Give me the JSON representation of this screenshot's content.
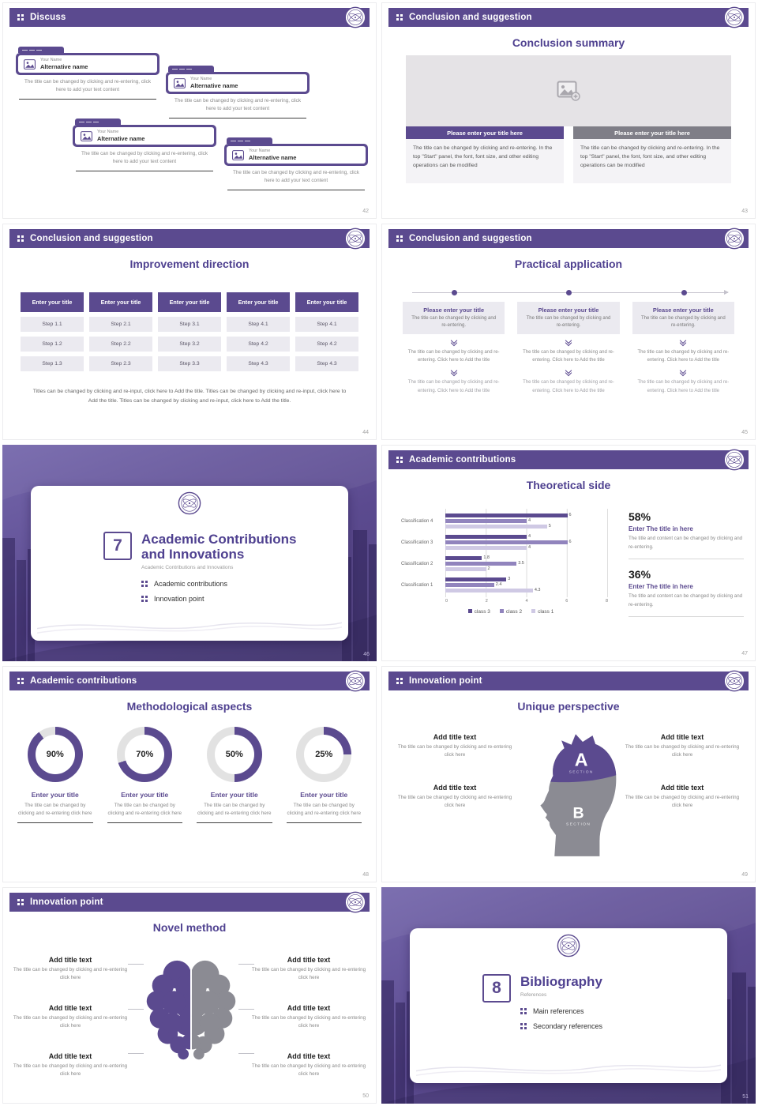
{
  "theme": {
    "primary": "#5b4a8f",
    "primary_dark": "#4f4190",
    "mid_purple": "#9184bd",
    "light_purple": "#cfc9e4",
    "bar_gray": "#7f7e87",
    "panel_gray": "#ebeaf0",
    "placeholder_gray": "#e5e3e6",
    "donut_track": "#e2e2e2",
    "head_gray": "#8b8b93"
  },
  "slides": {
    "s42": {
      "header": "Discuss",
      "page": "42",
      "cards": [
        {
          "name_label": "Your Name",
          "alt_name": "Alternative name",
          "body": "The title can be changed by clicking and re-entering, click here to add your text content"
        },
        {
          "name_label": "Your Name",
          "alt_name": "Alternative name",
          "body": "The title can be changed by clicking and re-entering, click here to add your text content"
        },
        {
          "name_label": "Your Name",
          "alt_name": "Alternative name",
          "body": "The title can be changed by clicking and re-entering, click here to add your text content"
        },
        {
          "name_label": "Your Name",
          "alt_name": "Alternative name",
          "body": "The title can be changed by clicking and re-entering, click here to add your text content"
        }
      ]
    },
    "s43": {
      "header": "Conclusion and suggestion",
      "page": "43",
      "heading": "Conclusion summary",
      "columns": [
        {
          "title": "Please enter your title here",
          "body": "The title can be changed by clicking and re-entering. In the top \"Start\" panel, the font, font size, and other editing operations can be modified"
        },
        {
          "title": "Please enter your title here",
          "body": "The title can be changed by clicking and re-entering. In the top \"Start\" panel, the font, font size, and other editing operations can be modified"
        }
      ]
    },
    "s44": {
      "header": "Conclusion and suggestion",
      "page": "44",
      "heading": "Improvement direction",
      "button_label": "Enter your title",
      "columns": [
        {
          "steps": [
            "Step 1.1",
            "Step 1.2",
            "Step 1.3"
          ]
        },
        {
          "steps": [
            "Step 2.1",
            "Step 2.2",
            "Step 2.3"
          ]
        },
        {
          "steps": [
            "Step 3.1",
            "Step 3.2",
            "Step 3.3"
          ]
        },
        {
          "steps": [
            "Step 4.1",
            "Step 4.2",
            "Step 4.3"
          ]
        },
        {
          "steps": [
            "Step 4.1",
            "Step 4.2",
            "Step 4.3"
          ]
        }
      ],
      "footer": "Titles can be changed by clicking and re-input, click here to Add the title. Titles can be changed by clicking and re-input, click here to Add the title. Titles can be changed by clicking and re-input, click here to Add the title."
    },
    "s45": {
      "header": "Conclusion and suggestion",
      "page": "45",
      "heading": "Practical application",
      "col_title": "Please enter your title",
      "col_sub": "The title can be changed by clicking and re-entering.",
      "col_body": "The title can be changed by clicking and re-entering. Click here to Add the title"
    },
    "s46": {
      "page": "46",
      "number": "7",
      "title_line1": "Academic Contributions",
      "title_line2": "and Innovations",
      "subtitle": "Academic Contributions and Innovations",
      "bullets": [
        "Academic contributions",
        "Innovation point"
      ]
    },
    "s47": {
      "header": "Academic contributions",
      "page": "47",
      "heading": "Theoretical side",
      "stats": [
        {
          "percent": "58%",
          "title": "Enter The title in here",
          "body": "The title and content can be changed by clicking and re-entering."
        },
        {
          "percent": "36%",
          "title": "Enter The title in here",
          "body": "The title and content can be changed by clicking and re-entering."
        }
      ]
    },
    "s48": {
      "header": "Academic contributions",
      "page": "48",
      "heading": "Methodological aspects",
      "donuts": [
        {
          "percent": 90,
          "label": "90%",
          "title": "Enter your title",
          "body": "The title can be changed by clicking and re-entering click here"
        },
        {
          "percent": 70,
          "label": "70%",
          "title": "Enter your title",
          "body": "The title can be changed by clicking and re-entering click here"
        },
        {
          "percent": 50,
          "label": "50%",
          "title": "Enter your title",
          "body": "The title can be changed by clicking and re-entering click here"
        },
        {
          "percent": 25,
          "label": "25%",
          "title": "Enter your title",
          "body": "The title can be changed by clicking and re-entering click here"
        }
      ]
    },
    "s49": {
      "header": "Innovation point",
      "page": "49",
      "heading": "Unique perspective",
      "section_a": "A",
      "section_a_label": "SECTION",
      "section_b": "B",
      "section_b_label": "SECTION",
      "blocks_left": [
        {
          "title": "Add title text",
          "body": "The title can be changed by clicking and re-entering click here"
        },
        {
          "title": "Add title text",
          "body": "The title can be changed by clicking and re-entering click here"
        }
      ],
      "blocks_right": [
        {
          "title": "Add title text",
          "body": "The title can be changed by clicking and re-entering click here"
        },
        {
          "title": "Add title text",
          "body": "The title can be changed by clicking and re-entering click here"
        }
      ]
    },
    "s50": {
      "header": "Innovation point",
      "page": "50",
      "heading": "Novel method",
      "blocks_left": [
        {
          "title": "Add title text",
          "body": "The title can be changed by clicking and re-entering click here"
        },
        {
          "title": "Add title text",
          "body": "The title can be changed by clicking and re-entering click here"
        },
        {
          "title": "Add title text",
          "body": "The title can be changed by clicking and re-entering click here"
        }
      ],
      "blocks_right": [
        {
          "title": "Add title text",
          "body": "The title can be changed by clicking and re-entering click here"
        },
        {
          "title": "Add title text",
          "body": "The title can be changed by clicking and re-entering click here"
        },
        {
          "title": "Add title text",
          "body": "The title can be changed by clicking and re-entering click here"
        }
      ]
    },
    "s51": {
      "page": "51",
      "number": "8",
      "title_line1": "Bibliography",
      "title_line2": "",
      "subtitle": "References",
      "bullets": [
        "Main references",
        "Secondary references"
      ]
    }
  },
  "chart_data": {
    "type": "bar",
    "orientation": "horizontal",
    "title": "Theoretical side",
    "categories": [
      "Classification 4",
      "Classification 3",
      "Classification 2",
      "Classification 1"
    ],
    "series": [
      {
        "name": "class 3",
        "color": "#5b4a8f",
        "values": [
          6,
          4,
          1.8,
          3
        ]
      },
      {
        "name": "class 2",
        "color": "#9184bd",
        "values": [
          4,
          6,
          3.5,
          2.4
        ]
      },
      {
        "name": "class 1",
        "color": "#cfc9e4",
        "values": [
          5,
          4,
          2,
          4.3
        ]
      }
    ],
    "xlim": [
      0,
      8
    ],
    "xticks": [
      "0",
      "2",
      "4",
      "6",
      "8"
    ],
    "legend": [
      "class 3",
      "class 2",
      "class 1"
    ],
    "legend_position": "bottom",
    "grid": true
  }
}
